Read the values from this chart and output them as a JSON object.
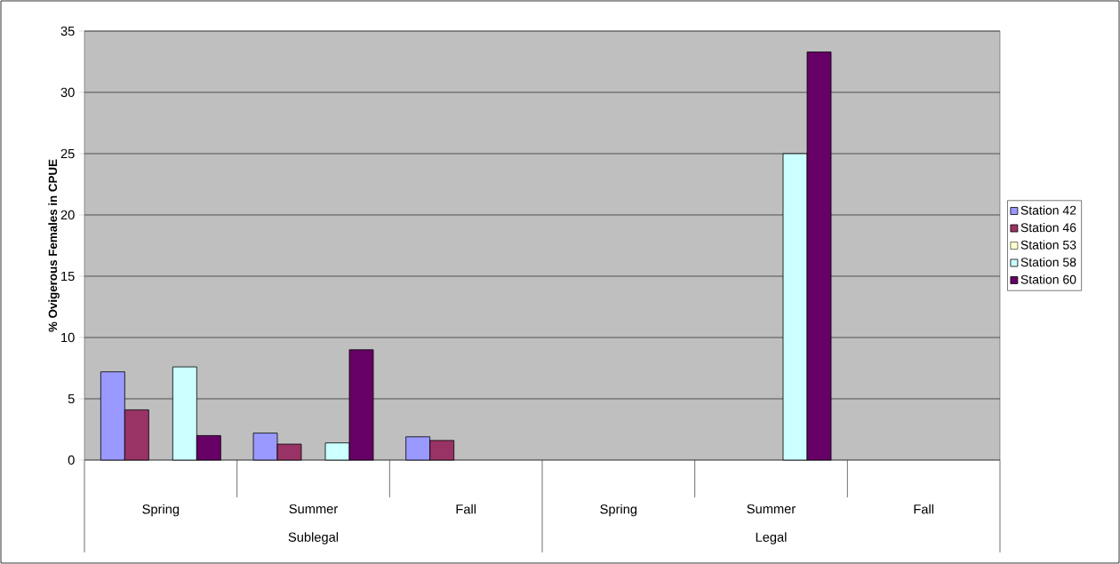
{
  "chart_data": {
    "type": "bar",
    "ylabel": "% Ovigerous Females in CPUE",
    "categories": [
      "Spring",
      "Summer",
      "Fall",
      "Spring",
      "Summer",
      "Fall"
    ],
    "annotations": [
      "Sublegal",
      "Legal"
    ],
    "series": [
      {
        "name": "Station 42",
        "color": "#9999ff",
        "values": [
          7.2,
          2.2,
          1.9,
          null,
          null,
          null
        ]
      },
      {
        "name": "Station 46",
        "color": "#993366",
        "values": [
          4.1,
          1.3,
          1.6,
          null,
          null,
          null
        ]
      },
      {
        "name": "Station 53",
        "color": "#ffffcc",
        "values": [
          null,
          null,
          null,
          null,
          null,
          null
        ]
      },
      {
        "name": "Station 58",
        "color": "#ccffff",
        "values": [
          7.6,
          1.4,
          null,
          null,
          25,
          null
        ]
      },
      {
        "name": "Station 60",
        "color": "#660066",
        "values": [
          2.0,
          9.0,
          null,
          null,
          33.3,
          null
        ]
      }
    ],
    "ylim": [
      0,
      35
    ],
    "yticks": [
      0,
      5,
      10,
      15,
      20,
      25,
      30,
      35
    ],
    "grid": "y",
    "legend": "right"
  }
}
